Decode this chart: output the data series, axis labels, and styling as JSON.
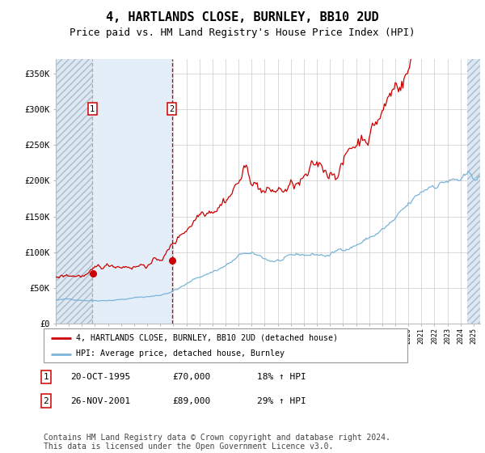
{
  "title": "4, HARTLANDS CLOSE, BURNLEY, BB10 2UD",
  "subtitle": "Price paid vs. HM Land Registry's House Price Index (HPI)",
  "title_fontsize": 11,
  "subtitle_fontsize": 9,
  "ylabel_ticks": [
    "£0",
    "£50K",
    "£100K",
    "£150K",
    "£200K",
    "£250K",
    "£300K",
    "£350K"
  ],
  "ylabel_values": [
    0,
    50000,
    100000,
    150000,
    200000,
    250000,
    300000,
    350000
  ],
  "ylim": [
    0,
    370000
  ],
  "x_start_year": 1993,
  "x_end_year": 2025,
  "hpi_color": "#7ab4d8",
  "price_color": "#cc0000",
  "hatch_facecolor": "#dde8f3",
  "shade_facecolor": "#e4eef8",
  "background_color": "#ffffff",
  "grid_color": "#cccccc",
  "sale1_year": 1995.8,
  "sale1_price": 70000,
  "sale2_year": 2001.9,
  "sale2_price": 89000,
  "legend_label_red": "4, HARTLANDS CLOSE, BURNLEY, BB10 2UD (detached house)",
  "legend_label_blue": "HPI: Average price, detached house, Burnley",
  "table_rows": [
    {
      "num": "1",
      "date": "20-OCT-1995",
      "price": "£70,000",
      "hpi": "18% ↑ HPI"
    },
    {
      "num": "2",
      "date": "26-NOV-2001",
      "price": "£89,000",
      "hpi": "29% ↑ HPI"
    }
  ],
  "footnote": "Contains HM Land Registry data © Crown copyright and database right 2024.\nThis data is licensed under the Open Government Licence v3.0.",
  "footnote_fontsize": 7
}
